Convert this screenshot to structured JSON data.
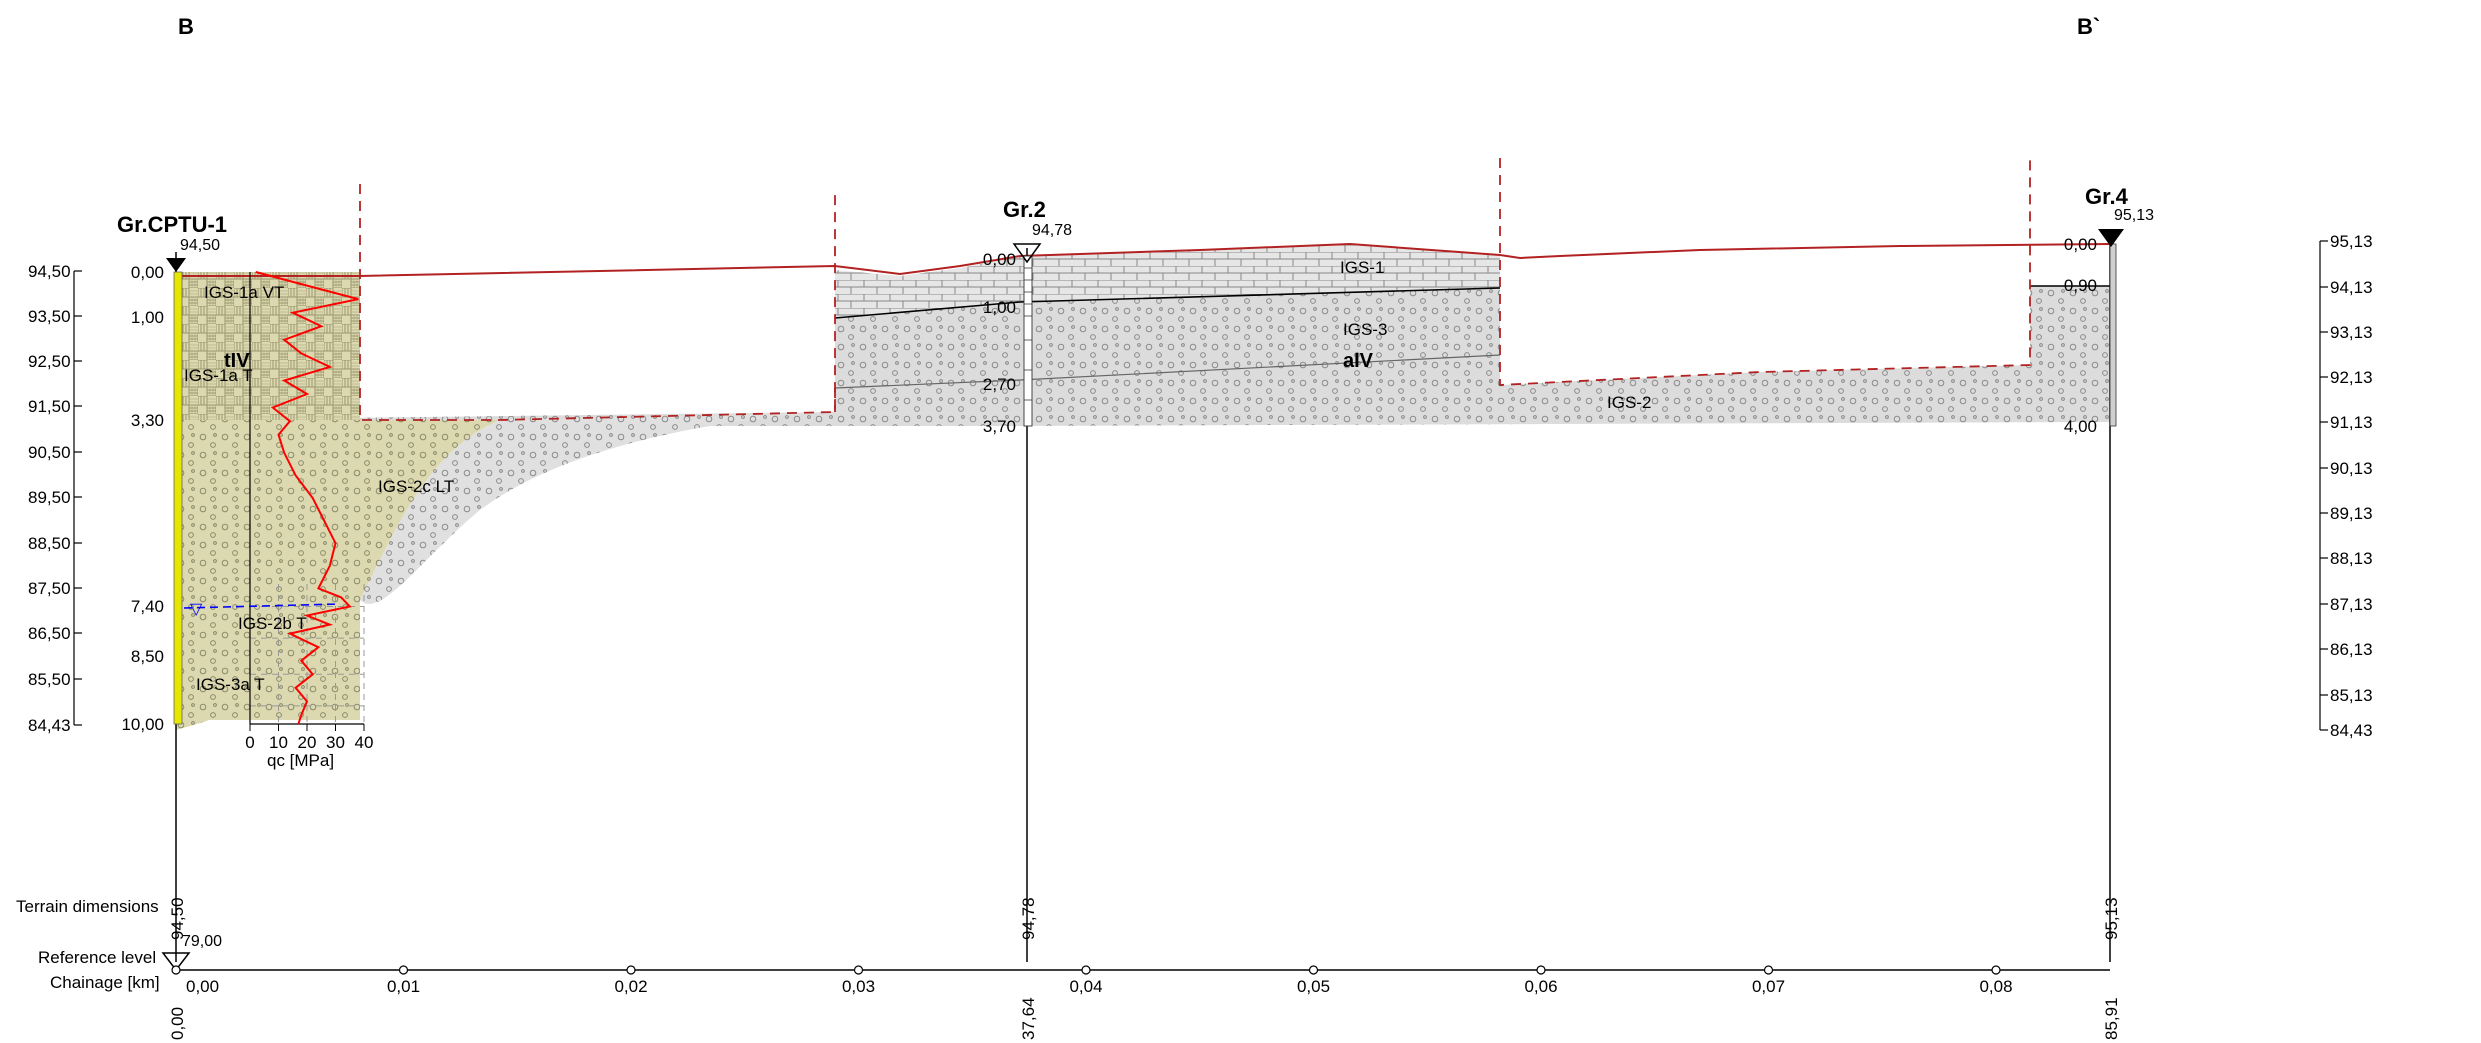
{
  "section": {
    "start_label": "B",
    "end_label": "B`"
  },
  "left_elevation_axis": [
    "94,50",
    "93,50",
    "92,50",
    "91,50",
    "90,50",
    "89,50",
    "88,50",
    "87,50",
    "86,50",
    "85,50",
    "84,43"
  ],
  "right_elevation_axis": [
    "95,13",
    "94,13",
    "93,13",
    "92,13",
    "91,13",
    "90,13",
    "89,13",
    "88,13",
    "87,13",
    "86,13",
    "85,13",
    "84,43"
  ],
  "boreholes": [
    {
      "name": "Gr.CPTU-1",
      "elevation": "94,50",
      "depth_labels": [
        "0,00",
        "1,00",
        "3,30",
        "7,40",
        "8,50",
        "10,00"
      ],
      "terrain_dimension": "94,50",
      "chainage_value": "0,00"
    },
    {
      "name": "Gr.2",
      "elevation": "94,78",
      "depth_labels": [
        "0,00",
        "1,00",
        "2,70",
        "3,70"
      ],
      "terrain_dimension": "94,78",
      "chainage_value": "37,64"
    },
    {
      "name": "Gr.4",
      "elevation": "95,13",
      "depth_labels": [
        "0,00",
        "0,90",
        "4,00"
      ],
      "terrain_dimension": "95,13",
      "chainage_value": "85,91"
    }
  ],
  "layer_labels": {
    "igs1a_v": "IGS-1a VT",
    "igs1a_t": "IGS-1a T",
    "tiv": "tIV",
    "igs2c": "IGS-2c LT",
    "igs2b": "IGS-2b T",
    "igs3a": "IGS-3a T",
    "igs1": "IGS-1",
    "igs3": "IGS-3",
    "aiv": "aIV",
    "igs2": "IGS-2"
  },
  "cpt_chart": {
    "title": "qc [MPa]",
    "ticks": [
      "0",
      "10",
      "20",
      "30",
      "40"
    ],
    "profile_depth_m": [
      0.0,
      0.3,
      0.6,
      0.9,
      1.2,
      1.5,
      1.8,
      2.1,
      2.4,
      2.7,
      3.0,
      3.3,
      3.6,
      4.0,
      4.5,
      5.0,
      5.5,
      6.0,
      6.5,
      7.0,
      7.2,
      7.4,
      7.6,
      7.8,
      8.0,
      8.3,
      8.6,
      8.9,
      9.2,
      9.5,
      9.8,
      10.0
    ],
    "profile_qc_mpa": [
      2,
      20,
      38,
      15,
      25,
      12,
      18,
      28,
      12,
      20,
      8,
      14,
      10,
      12,
      16,
      22,
      26,
      30,
      28,
      24,
      32,
      35,
      20,
      28,
      14,
      24,
      18,
      22,
      16,
      20,
      18,
      17
    ]
  },
  "groundwater_symbol": "▽",
  "bottom": {
    "terrain_label": "Terrain dimensions",
    "reference_label": "Reference level",
    "reference_value": "79,00",
    "chainage_label": "Chainage [km]",
    "chainage_ticks": [
      "0,00",
      "0,01",
      "0,02",
      "0,03",
      "0,04",
      "0,05",
      "0,06",
      "0,07",
      "0,08"
    ]
  },
  "colors": {
    "terrain_line": "#b22222",
    "cpt_line": "#ff0000",
    "boundary_dash": "#b22222",
    "water": "#0000ff",
    "layer_fill": "#d3d3d3",
    "igs1_hatch": "#e6e6e6",
    "cptu_fill": "#dcd9b0",
    "borehole_band": "#e6e600"
  }
}
